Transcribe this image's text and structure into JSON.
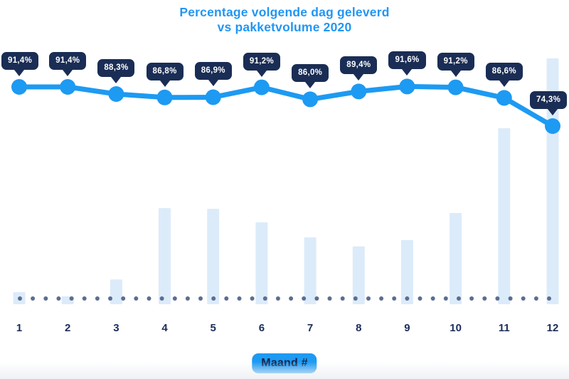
{
  "title": {
    "line1": "Percentage volgende dag geleverd",
    "line2": "vs pakketvolume 2020"
  },
  "colors": {
    "accent_blue": "#1d9af2",
    "title_blue": "#2196f3",
    "tooltip_navy": "#1a2d55",
    "bar_fill": "#dcebfa",
    "baseline_dot": "#5b6e91",
    "axis_text_navy": "#1b2d5a",
    "button_text_navy": "#13244c",
    "tooltip_text": "#ffffff"
  },
  "x_axis": {
    "tick_labels": [
      "1",
      "2",
      "3",
      "4",
      "5",
      "6",
      "7",
      "8",
      "9",
      "10",
      "11",
      "12"
    ],
    "axis_button_label": "Maand #"
  },
  "chart_data": {
    "type": "combo",
    "title": "Percentage volgende dag geleverd vs pakketvolume 2020",
    "categories": [
      1,
      2,
      3,
      4,
      5,
      6,
      7,
      8,
      9,
      10,
      11,
      12
    ],
    "xlabel": "Maand #",
    "ylabel": "",
    "legend": "none",
    "grid": false,
    "baseline_style": "dotted",
    "series": [
      {
        "name": "Percentage volgende dag geleverd",
        "type": "line",
        "unit": "%",
        "values": [
          91.4,
          91.4,
          88.3,
          86.8,
          86.9,
          91.2,
          86.0,
          89.4,
          91.6,
          91.2,
          86.6,
          74.3
        ],
        "point_labels": [
          "91,4%",
          "91,4%",
          "88,3%",
          "86,8%",
          "86,9%",
          "91,2%",
          "86,0%",
          "89,4%",
          "91,6%",
          "91,2%",
          "86,6%",
          "74,3%"
        ]
      },
      {
        "name": "Pakketvolume",
        "type": "bar",
        "values": [
          4.9,
          3.2,
          10.1,
          39.1,
          38.8,
          33.3,
          27.2,
          23.5,
          26.1,
          37.1,
          71.6,
          100
        ],
        "note": "relative volume index, december = 100; no value axis shown in chart"
      }
    ]
  }
}
